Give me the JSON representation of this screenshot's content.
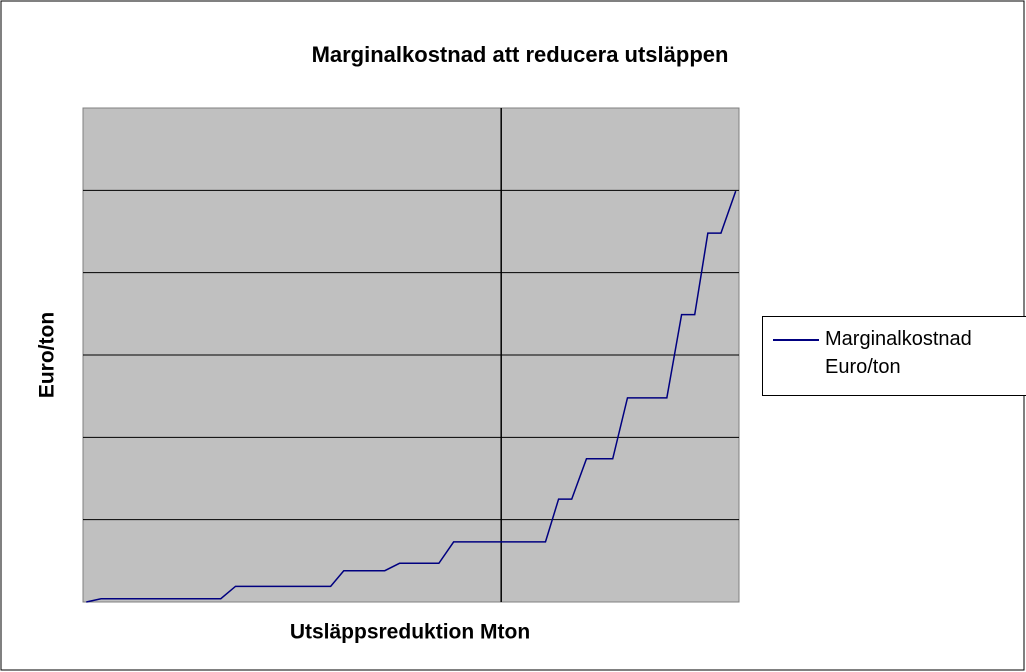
{
  "chart_data": {
    "type": "line",
    "title": "Marginalkostnad att reducera utsläppen",
    "x_label": "Utsläppsreduktion Mton",
    "y_label": "Euro/ton",
    "xlim": [
      0,
      40
    ],
    "ylim": [
      0,
      6
    ],
    "yticks": [
      1,
      2,
      3,
      4,
      5
    ],
    "grid": true,
    "vline": 25.5,
    "legend": "right",
    "series": [
      {
        "name": "Marginalkostnad Euro/ton",
        "color": "#000080",
        "x": [
          0.2,
          1.1,
          8.4,
          9.3,
          15.1,
          15.9,
          18.4,
          19.3,
          21.7,
          22.6,
          28.2,
          29.0,
          29.8,
          30.7,
          32.3,
          33.2,
          35.6,
          36.5,
          37.3,
          38.1,
          38.9,
          39.8
        ],
        "values": [
          0,
          0.04,
          0.04,
          0.19,
          0.19,
          0.38,
          0.38,
          0.47,
          0.47,
          0.73,
          0.73,
          1.25,
          1.25,
          1.74,
          1.74,
          2.48,
          2.48,
          3.49,
          3.49,
          4.48,
          4.48,
          4.99
        ]
      }
    ]
  }
}
